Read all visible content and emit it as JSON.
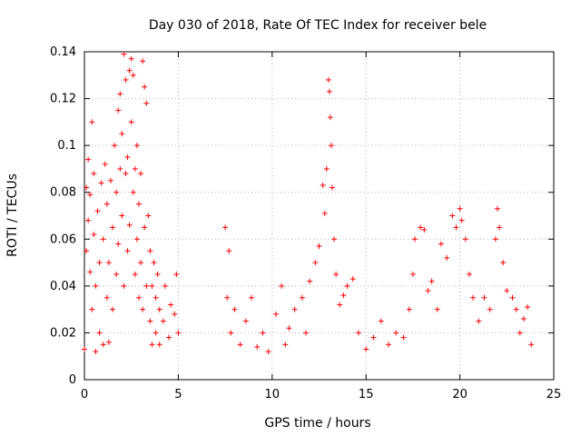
{
  "chart_data": {
    "type": "scatter",
    "title": "Day 030 of 2018, Rate Of TEC Index for receiver bele",
    "xlabel": "GPS time / hours",
    "ylabel": "ROTI / TECUs",
    "xlim": [
      0,
      25
    ],
    "ylim": [
      0,
      0.14
    ],
    "xticks": [
      0,
      5,
      10,
      15,
      20,
      25
    ],
    "xtick_labels": [
      "0",
      "5",
      "10",
      "15",
      "20",
      "25"
    ],
    "yticks": [
      0,
      0.02,
      0.04,
      0.06,
      0.08,
      0.1,
      0.12,
      0.14
    ],
    "ytick_labels": [
      "0",
      "0.02",
      "0.04",
      "0.06",
      "0.08",
      "0.1",
      "0.12",
      "0.14"
    ],
    "grid": true,
    "marker": "plus",
    "series_color": "#ff0000",
    "series": [
      {
        "name": "",
        "points": [
          [
            0.0,
            0.013
          ],
          [
            0.1,
            0.055
          ],
          [
            0.1,
            0.082
          ],
          [
            0.2,
            0.068
          ],
          [
            0.2,
            0.094
          ],
          [
            0.3,
            0.046
          ],
          [
            0.3,
            0.079
          ],
          [
            0.4,
            0.11
          ],
          [
            0.4,
            0.03
          ],
          [
            0.5,
            0.062
          ],
          [
            0.5,
            0.088
          ],
          [
            0.6,
            0.012
          ],
          [
            0.6,
            0.04
          ],
          [
            0.7,
            0.072
          ],
          [
            0.8,
            0.02
          ],
          [
            0.8,
            0.05
          ],
          [
            0.9,
            0.084
          ],
          [
            1.0,
            0.015
          ],
          [
            1.0,
            0.06
          ],
          [
            1.1,
            0.092
          ],
          [
            1.2,
            0.035
          ],
          [
            1.2,
            0.075
          ],
          [
            1.3,
            0.016
          ],
          [
            1.3,
            0.05
          ],
          [
            1.4,
            0.085
          ],
          [
            1.5,
            0.03
          ],
          [
            1.5,
            0.065
          ],
          [
            1.6,
            0.1
          ],
          [
            1.7,
            0.045
          ],
          [
            1.7,
            0.08
          ],
          [
            1.8,
            0.115
          ],
          [
            1.8,
            0.058
          ],
          [
            1.9,
            0.09
          ],
          [
            1.9,
            0.122
          ],
          [
            2.0,
            0.07
          ],
          [
            2.0,
            0.105
          ],
          [
            2.1,
            0.139
          ],
          [
            2.1,
            0.04
          ],
          [
            2.2,
            0.088
          ],
          [
            2.2,
            0.128
          ],
          [
            2.3,
            0.055
          ],
          [
            2.3,
            0.095
          ],
          [
            2.4,
            0.132
          ],
          [
            2.4,
            0.066
          ],
          [
            2.5,
            0.137
          ],
          [
            2.5,
            0.11
          ],
          [
            2.6,
            0.08
          ],
          [
            2.6,
            0.13
          ],
          [
            2.7,
            0.045
          ],
          [
            2.7,
            0.09
          ],
          [
            2.8,
            0.06
          ],
          [
            2.8,
            0.1
          ],
          [
            2.9,
            0.035
          ],
          [
            2.9,
            0.075
          ],
          [
            3.0,
            0.05
          ],
          [
            3.0,
            0.088
          ],
          [
            3.1,
            0.136
          ],
          [
            3.1,
            0.03
          ],
          [
            3.2,
            0.125
          ],
          [
            3.2,
            0.065
          ],
          [
            3.3,
            0.118
          ],
          [
            3.3,
            0.04
          ],
          [
            3.4,
            0.07
          ],
          [
            3.5,
            0.025
          ],
          [
            3.5,
            0.055
          ],
          [
            3.6,
            0.015
          ],
          [
            3.6,
            0.04
          ],
          [
            3.7,
            0.05
          ],
          [
            3.8,
            0.02
          ],
          [
            3.8,
            0.035
          ],
          [
            3.9,
            0.045
          ],
          [
            4.0,
            0.015
          ],
          [
            4.0,
            0.03
          ],
          [
            4.2,
            0.025
          ],
          [
            4.3,
            0.04
          ],
          [
            4.5,
            0.018
          ],
          [
            4.6,
            0.032
          ],
          [
            4.8,
            0.028
          ],
          [
            4.9,
            0.045
          ],
          [
            5.0,
            0.02
          ],
          [
            7.5,
            0.065
          ],
          [
            7.6,
            0.035
          ],
          [
            7.7,
            0.055
          ],
          [
            7.8,
            0.02
          ],
          [
            8.0,
            0.03
          ],
          [
            8.3,
            0.015
          ],
          [
            8.6,
            0.025
          ],
          [
            8.9,
            0.035
          ],
          [
            9.2,
            0.014
          ],
          [
            9.5,
            0.02
          ],
          [
            9.8,
            0.012
          ],
          [
            10.2,
            0.028
          ],
          [
            10.5,
            0.04
          ],
          [
            10.7,
            0.015
          ],
          [
            10.9,
            0.022
          ],
          [
            11.2,
            0.03
          ],
          [
            11.6,
            0.035
          ],
          [
            11.8,
            0.02
          ],
          [
            12.0,
            0.042
          ],
          [
            12.3,
            0.05
          ],
          [
            12.5,
            0.057
          ],
          [
            12.7,
            0.083
          ],
          [
            12.8,
            0.071
          ],
          [
            12.9,
            0.09
          ],
          [
            13.0,
            0.128
          ],
          [
            13.05,
            0.123
          ],
          [
            13.1,
            0.112
          ],
          [
            13.15,
            0.1
          ],
          [
            13.2,
            0.082
          ],
          [
            13.3,
            0.06
          ],
          [
            13.4,
            0.045
          ],
          [
            13.6,
            0.032
          ],
          [
            13.8,
            0.036
          ],
          [
            14.0,
            0.04
          ],
          [
            14.3,
            0.043
          ],
          [
            14.6,
            0.02
          ],
          [
            15.0,
            0.013
          ],
          [
            15.4,
            0.018
          ],
          [
            15.8,
            0.025
          ],
          [
            16.2,
            0.015
          ],
          [
            16.6,
            0.02
          ],
          [
            17.0,
            0.018
          ],
          [
            17.3,
            0.03
          ],
          [
            17.5,
            0.045
          ],
          [
            17.6,
            0.06
          ],
          [
            17.9,
            0.065
          ],
          [
            18.1,
            0.064
          ],
          [
            18.3,
            0.038
          ],
          [
            18.5,
            0.042
          ],
          [
            18.8,
            0.03
          ],
          [
            19.0,
            0.058
          ],
          [
            19.3,
            0.052
          ],
          [
            19.6,
            0.07
          ],
          [
            19.8,
            0.065
          ],
          [
            20.0,
            0.073
          ],
          [
            20.1,
            0.068
          ],
          [
            20.3,
            0.06
          ],
          [
            20.5,
            0.045
          ],
          [
            20.7,
            0.035
          ],
          [
            21.0,
            0.025
          ],
          [
            21.3,
            0.035
          ],
          [
            21.6,
            0.03
          ],
          [
            21.9,
            0.06
          ],
          [
            22.0,
            0.073
          ],
          [
            22.1,
            0.065
          ],
          [
            22.3,
            0.05
          ],
          [
            22.5,
            0.038
          ],
          [
            22.8,
            0.035
          ],
          [
            23.0,
            0.03
          ],
          [
            23.2,
            0.02
          ],
          [
            23.4,
            0.026
          ],
          [
            23.6,
            0.031
          ],
          [
            23.8,
            0.015
          ]
        ]
      }
    ]
  }
}
